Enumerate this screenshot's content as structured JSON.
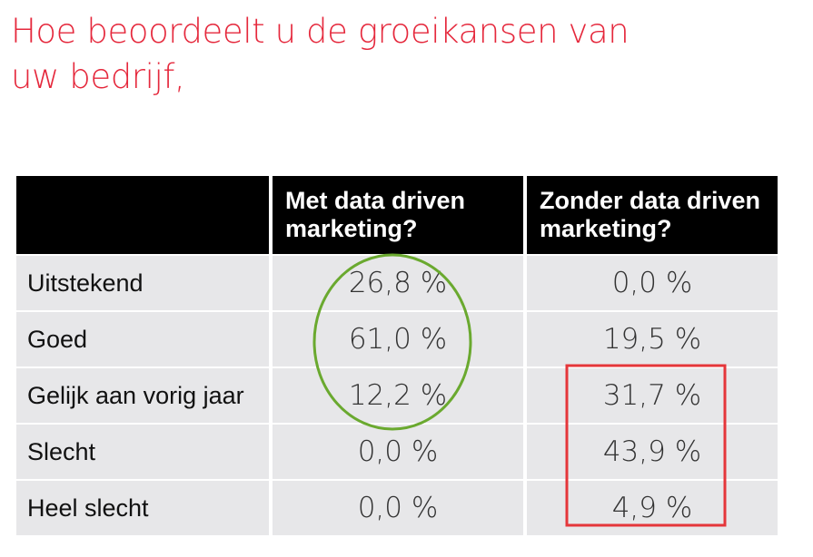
{
  "title_lines": [
    "Hoe beoordeelt u de groeikansen van",
    "uw bedrijf,"
  ],
  "chart_data": {
    "type": "table",
    "columns": [
      "Met data driven marketing?",
      "Zonder data driven marketing?"
    ],
    "column_lines": [
      [
        "Met data driven",
        "marketing?"
      ],
      [
        "Zonder data driven",
        "marketing?"
      ]
    ],
    "rows": [
      {
        "label": "Uitstekend",
        "values": [
          "26,8 %",
          "0,0 %"
        ]
      },
      {
        "label": "Goed",
        "values": [
          "61,0 %",
          "19,5 %"
        ]
      },
      {
        "label": "Gelijk aan vorig jaar",
        "values": [
          "12,2 %",
          "31,7 %"
        ]
      },
      {
        "label": "Slecht",
        "values": [
          "0,0 %",
          "43,9 %"
        ]
      },
      {
        "label": "Heel slecht",
        "values": [
          "0,0 %",
          "4,9 %"
        ]
      }
    ],
    "values_numeric": [
      [
        26.8,
        0.0
      ],
      [
        61.0,
        19.5
      ],
      [
        12.2,
        31.7
      ],
      [
        0.0,
        43.9
      ],
      [
        0.0,
        4.9
      ]
    ],
    "unit": "%"
  },
  "annotations": {
    "ellipse_color": "#6aa92f",
    "rect_color": "#e5363a"
  },
  "colors": {
    "title": "#e5283c",
    "header_bg": "#000000",
    "cell_bg": "#e7e7e9"
  }
}
